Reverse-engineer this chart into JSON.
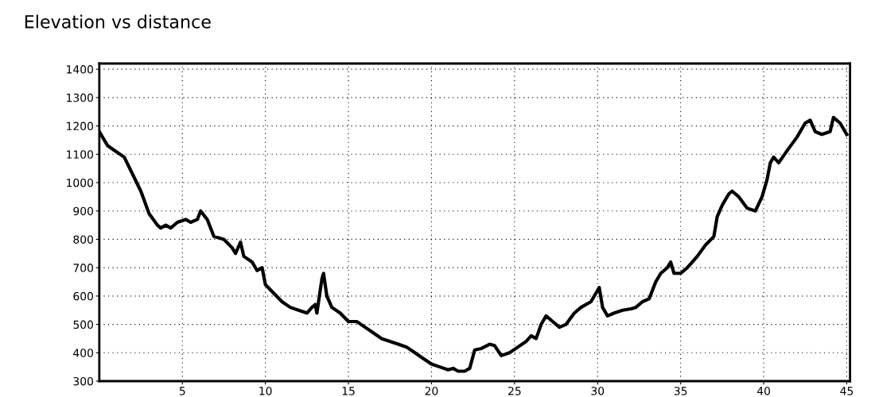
{
  "chart_data": {
    "type": "line",
    "title": "Elevation vs distance",
    "x": [
      0,
      0.5,
      1.0,
      1.5,
      2.0,
      2.5,
      3.0,
      3.5,
      3.7,
      4.0,
      4.3,
      4.7,
      5.2,
      5.5,
      5.9,
      6.1,
      6.5,
      6.9,
      7.5,
      8.0,
      8.2,
      8.5,
      8.7,
      9.2,
      9.5,
      9.8,
      10.0,
      10.5,
      11.0,
      11.5,
      12.0,
      12.5,
      12.8,
      13.0,
      13.1,
      13.4,
      13.5,
      13.7,
      14.0,
      14.5,
      15.0,
      15.5,
      16.0,
      16.5,
      17.0,
      17.5,
      18.0,
      18.5,
      19.0,
      19.5,
      20.0,
      20.5,
      21.0,
      21.3,
      21.6,
      22.0,
      22.3,
      22.6,
      23.0,
      23.5,
      23.8,
      24.2,
      24.7,
      25.2,
      25.7,
      26.0,
      26.3,
      26.6,
      26.9,
      27.3,
      27.7,
      28.1,
      28.6,
      29.0,
      29.6,
      30.0,
      30.1,
      30.3,
      30.6,
      31.0,
      31.5,
      32.0,
      32.3,
      32.7,
      33.1,
      33.5,
      33.8,
      34.2,
      34.4,
      34.6,
      35.0,
      35.4,
      36.0,
      36.5,
      37.0,
      37.2,
      37.5,
      37.9,
      38.1,
      38.5,
      39.0,
      39.5,
      39.9,
      40.2,
      40.4,
      40.6,
      40.9,
      41.5,
      42.0,
      42.5,
      42.8,
      43.1,
      43.5,
      44.0,
      44.2,
      44.6,
      45.0
    ],
    "series": [
      {
        "color": "#000000",
        "values": [
          1180,
          1130,
          1110,
          1090,
          1030,
          970,
          890,
          850,
          840,
          850,
          840,
          860,
          870,
          860,
          870,
          900,
          870,
          810,
          800,
          770,
          750,
          790,
          740,
          720,
          690,
          700,
          640,
          610,
          580,
          560,
          550,
          540,
          560,
          570,
          540,
          660,
          680,
          600,
          560,
          540,
          510,
          510,
          490,
          470,
          450,
          440,
          430,
          420,
          400,
          380,
          360,
          350,
          340,
          345,
          335,
          335,
          345,
          410,
          415,
          430,
          425,
          390,
          400,
          420,
          440,
          460,
          450,
          500,
          530,
          510,
          490,
          500,
          540,
          560,
          580,
          620,
          630,
          560,
          530,
          540,
          550,
          555,
          560,
          580,
          590,
          650,
          680,
          700,
          720,
          680,
          680,
          700,
          740,
          780,
          810,
          880,
          920,
          960,
          970,
          950,
          910,
          900,
          950,
          1010,
          1070,
          1090,
          1070,
          1120,
          1160,
          1210,
          1220,
          1180,
          1170,
          1180,
          1230,
          1210,
          1170
        ]
      }
    ],
    "xlim": [
      0,
      45.2
    ],
    "xticks": [
      5,
      10,
      15,
      20,
      25,
      30,
      35,
      40,
      45
    ],
    "ylim": [
      300,
      1420
    ],
    "yticks": [
      300,
      400,
      500,
      600,
      700,
      800,
      900,
      1000,
      1100,
      1200,
      1300,
      1400
    ],
    "grid": true,
    "line_style": "solid",
    "marker": "none"
  }
}
